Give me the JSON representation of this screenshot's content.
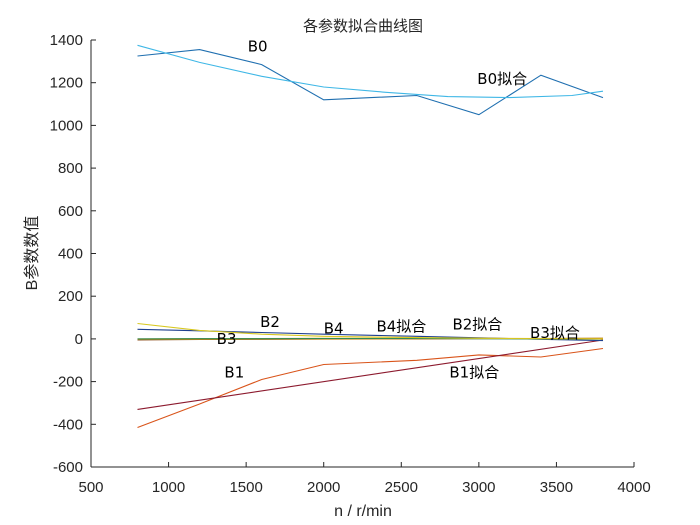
{
  "chart_data": {
    "type": "line",
    "title": "各参数拟合曲线图",
    "xlabel": "n / r/min",
    "ylabel": "B参数数值",
    "xlim": [
      500,
      4000
    ],
    "ylim": [
      -600,
      1400
    ],
    "xticks": [
      500,
      1000,
      1500,
      2000,
      2500,
      3000,
      3500,
      4000
    ],
    "yticks": [
      -600,
      -400,
      -200,
      0,
      200,
      400,
      600,
      800,
      1000,
      1200,
      1400
    ],
    "grid": false,
    "series": [
      {
        "name": "B0",
        "color": "#1f6fb0",
        "x": [
          800,
          1200,
          1600,
          2000,
          2600,
          3000,
          3400,
          3800
        ],
        "y": [
          1325,
          1355,
          1285,
          1120,
          1140,
          1050,
          1235,
          1130
        ]
      },
      {
        "name": "B0拟合",
        "color": "#3fb7e6",
        "x": [
          800,
          1200,
          1600,
          2000,
          2400,
          2800,
          3200,
          3600,
          3800
        ],
        "y": [
          1375,
          1295,
          1230,
          1180,
          1155,
          1135,
          1130,
          1140,
          1160
        ]
      },
      {
        "name": "B1",
        "color": "#d9541a",
        "x": [
          800,
          1200,
          1600,
          2000,
          2600,
          3000,
          3400,
          3800
        ],
        "y": [
          -415,
          -305,
          -190,
          -120,
          -100,
          -75,
          -85,
          -45
        ]
      },
      {
        "name": "B1拟合",
        "color": "#8c1a2e",
        "x": [
          800,
          3800
        ],
        "y": [
          -330,
          -5
        ]
      },
      {
        "name": "B2",
        "color": "#1f3f8f",
        "x": [
          800,
          1200,
          1600,
          2000,
          2600,
          3000,
          3400,
          3800
        ],
        "y": [
          45,
          38,
          30,
          22,
          12,
          5,
          -2,
          -8
        ]
      },
      {
        "name": "B2拟合",
        "color": "#e0a31a",
        "x": [
          800,
          1200,
          1600,
          2000,
          2600,
          3000,
          3400,
          3800
        ],
        "y": [
          0,
          1,
          2,
          3,
          3,
          3,
          2,
          1
        ]
      },
      {
        "name": "B3",
        "color": "#8f5020",
        "x": [
          800,
          1200,
          1600,
          2000,
          2600,
          3000,
          3400,
          3800
        ],
        "y": [
          -5,
          -3,
          -2,
          -1,
          0,
          1,
          2,
          3
        ]
      },
      {
        "name": "B3拟合",
        "color": "#cc8a10",
        "x": [
          800,
          1200,
          1600,
          2000,
          2600,
          3000,
          3400,
          3800
        ],
        "y": [
          -2,
          -2,
          -1,
          0,
          1,
          2,
          2,
          3
        ]
      },
      {
        "name": "B4",
        "color": "#2e8b57",
        "x": [
          800,
          1200,
          1600,
          2000,
          2600,
          3000,
          3400,
          3800
        ],
        "y": [
          0,
          1,
          1,
          2,
          2,
          1,
          0,
          -1
        ]
      },
      {
        "name": "B4拟合",
        "color": "#d8c820",
        "x": [
          800,
          1200,
          1600,
          2000,
          2600,
          3000,
          3400,
          3800
        ],
        "y": [
          72,
          40,
          22,
          12,
          6,
          3,
          1,
          0
        ]
      }
    ],
    "annotations": [
      {
        "text": "B0",
        "x": 1510,
        "y": 1345
      },
      {
        "text": "B0拟合",
        "x": 2990,
        "y": 1195
      },
      {
        "text": "B2",
        "x": 1590,
        "y": 55
      },
      {
        "text": "B4",
        "x": 2000,
        "y": 25
      },
      {
        "text": "B4拟合",
        "x": 2340,
        "y": 35
      },
      {
        "text": "B2拟合",
        "x": 2830,
        "y": 45
      },
      {
        "text": "B3拟合",
        "x": 3330,
        "y": 5
      },
      {
        "text": "B3",
        "x": 1310,
        "y": -25
      },
      {
        "text": "B1",
        "x": 1360,
        "y": -180
      },
      {
        "text": "B1拟合",
        "x": 2810,
        "y": -180
      }
    ]
  }
}
